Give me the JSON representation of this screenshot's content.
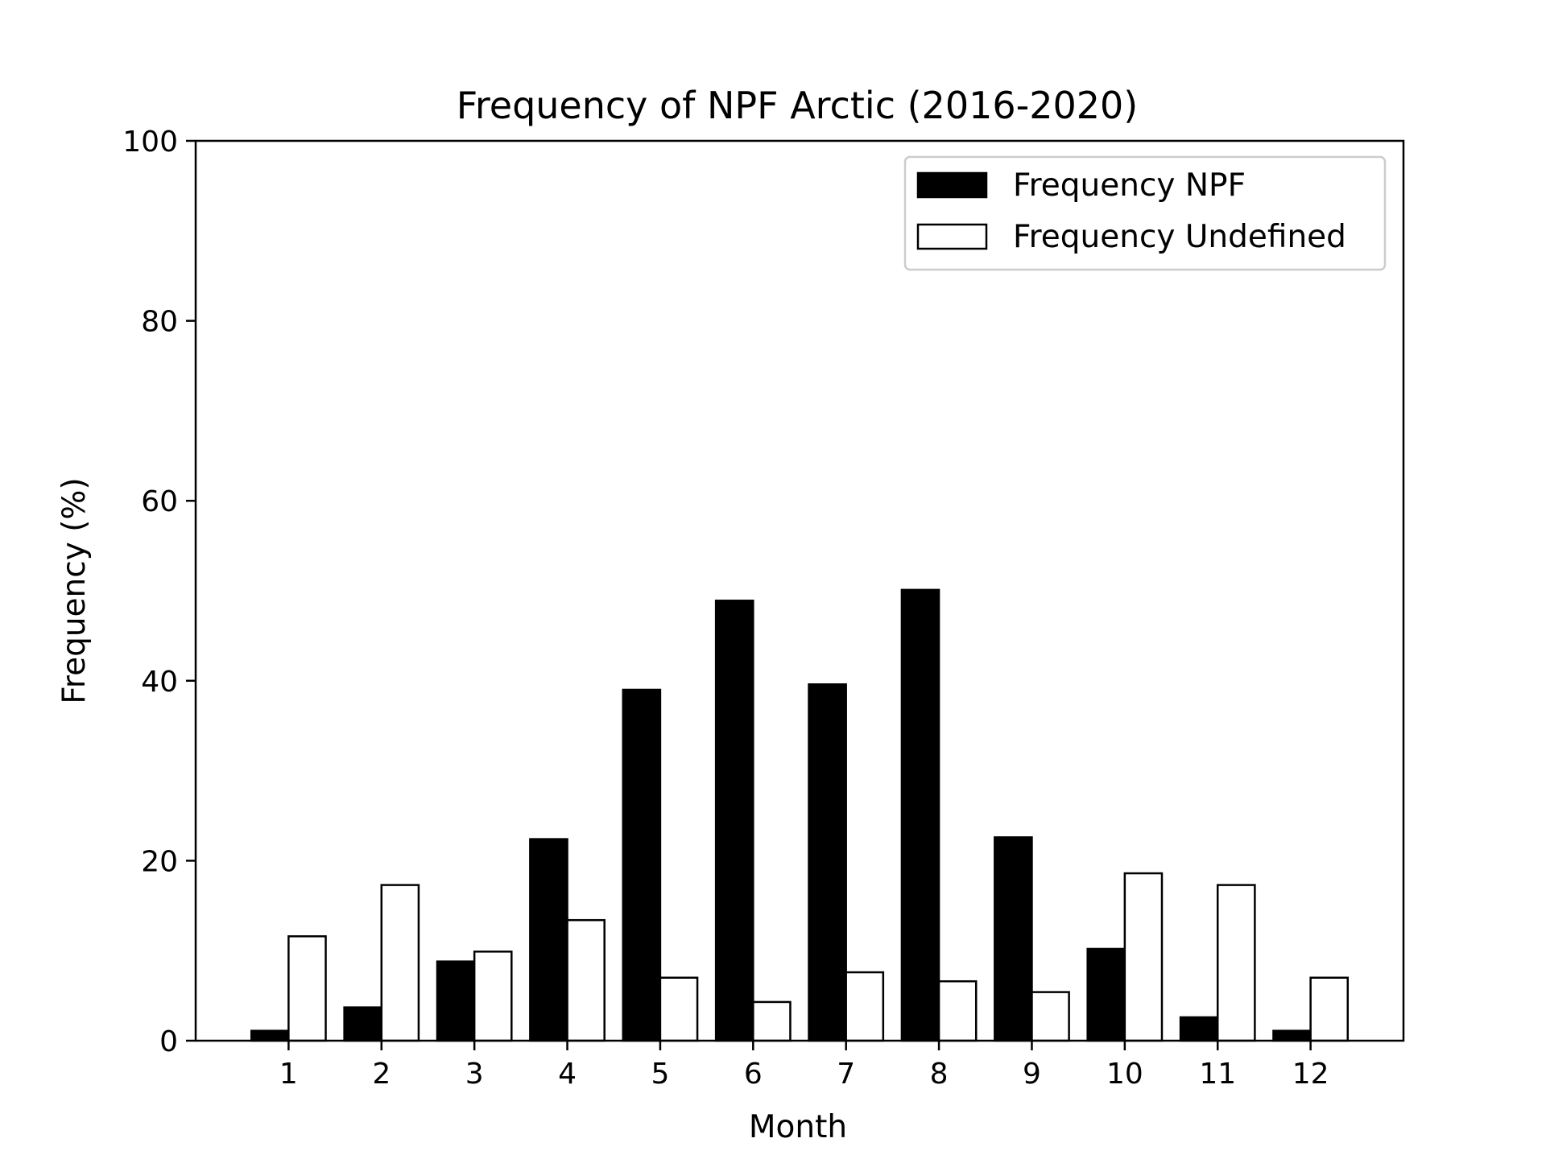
{
  "chart_data": {
    "type": "bar",
    "title": "Frequency of NPF Arctic (2016-2020)",
    "xlabel": "Month",
    "ylabel": "Frequency (%)",
    "ylim": [
      0,
      100
    ],
    "yticks": [
      0,
      20,
      40,
      60,
      80,
      100
    ],
    "xlim": [
      0,
      13
    ],
    "categories": [
      "1",
      "2",
      "3",
      "4",
      "5",
      "6",
      "7",
      "8",
      "9",
      "10",
      "11",
      "12"
    ],
    "series": [
      {
        "name": "Frequency NPF",
        "fill": "#000000",
        "edge": "#000000",
        "values": [
          1.1,
          3.7,
          8.8,
          22.4,
          39.0,
          48.9,
          39.6,
          50.1,
          22.6,
          10.2,
          2.6,
          1.1
        ]
      },
      {
        "name": "Frequency Undefined",
        "fill": "#ffffff",
        "edge": "#000000",
        "values": [
          11.6,
          17.3,
          9.9,
          13.4,
          7.0,
          4.3,
          7.6,
          6.6,
          5.4,
          18.6,
          17.3,
          7.0
        ]
      }
    ],
    "grid": false,
    "legend_position": "top-right"
  }
}
